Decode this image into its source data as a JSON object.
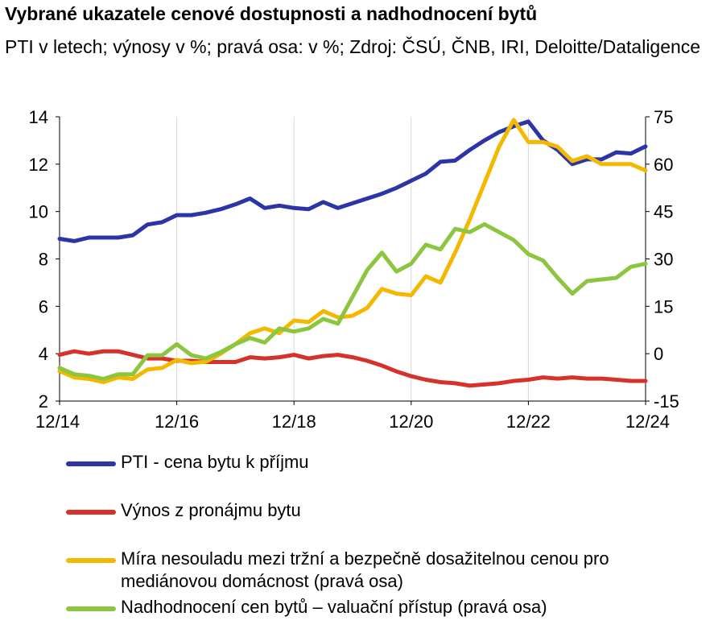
{
  "title": "Vybrané ukazatele cenové dostupnosti a nadhodnocení bytů",
  "subtitle": "PTI v letech; výnosy v %; pravá osa: v %; Zdroj: ČSÚ, ČNB, IRI, Deloitte/Dataligence",
  "chart_data": {
    "type": "line",
    "x_ticks": [
      "12/14",
      "12/16",
      "12/18",
      "12/20",
      "12/22",
      "12/24"
    ],
    "x_range": [
      2014.917,
      2024.917
    ],
    "ylim_left": [
      2,
      14
    ],
    "yticks_left": [
      2,
      4,
      6,
      8,
      10,
      12,
      14
    ],
    "ylim_right": [
      -15,
      75
    ],
    "yticks_right": [
      -15,
      0,
      15,
      30,
      45,
      60,
      75
    ],
    "grid": "vertical",
    "legend_position": "bottom",
    "series": [
      {
        "name": "PTI - cena bytu k příjmu",
        "axis": "left",
        "color": "#2b35a8",
        "x": [
          2014.917,
          2015.167,
          2015.417,
          2015.667,
          2015.917,
          2016.167,
          2016.417,
          2016.667,
          2016.917,
          2017.167,
          2017.417,
          2017.667,
          2017.917,
          2018.167,
          2018.417,
          2018.667,
          2018.917,
          2019.167,
          2019.417,
          2019.667,
          2019.917,
          2020.167,
          2020.417,
          2020.667,
          2020.917,
          2021.167,
          2021.417,
          2021.667,
          2021.917,
          2022.167,
          2022.417,
          2022.667,
          2022.917,
          2023.167,
          2023.417,
          2023.667,
          2023.917,
          2024.167,
          2024.417,
          2024.667,
          2024.917
        ],
        "y": [
          8.85,
          8.75,
          8.9,
          8.9,
          8.9,
          9.0,
          9.45,
          9.55,
          9.85,
          9.85,
          9.95,
          10.1,
          10.3,
          10.55,
          10.15,
          10.25,
          10.15,
          10.1,
          10.4,
          10.15,
          10.35,
          10.55,
          10.75,
          11.0,
          11.3,
          11.6,
          12.1,
          12.15,
          12.6,
          13.0,
          13.35,
          13.6,
          13.8,
          13.0,
          12.6,
          12.0,
          12.2,
          12.2,
          12.5,
          12.45,
          12.75
        ]
      },
      {
        "name": "Výnos z pronájmu bytu",
        "axis": "left",
        "color": "#d6322a",
        "x": [
          2014.917,
          2015.167,
          2015.417,
          2015.667,
          2015.917,
          2016.167,
          2016.417,
          2016.667,
          2016.917,
          2017.167,
          2017.417,
          2017.667,
          2017.917,
          2018.167,
          2018.417,
          2018.667,
          2018.917,
          2019.167,
          2019.417,
          2019.667,
          2019.917,
          2020.167,
          2020.417,
          2020.667,
          2020.917,
          2021.167,
          2021.417,
          2021.667,
          2021.917,
          2022.167,
          2022.417,
          2022.667,
          2022.917,
          2023.167,
          2023.417,
          2023.667,
          2023.917,
          2024.167,
          2024.417,
          2024.667,
          2024.917
        ],
        "y": [
          3.95,
          4.1,
          4.0,
          4.1,
          4.1,
          3.95,
          3.8,
          3.8,
          3.7,
          3.7,
          3.65,
          3.65,
          3.65,
          3.85,
          3.8,
          3.85,
          3.95,
          3.8,
          3.9,
          3.95,
          3.85,
          3.7,
          3.5,
          3.25,
          3.05,
          2.9,
          2.8,
          2.75,
          2.65,
          2.7,
          2.75,
          2.85,
          2.9,
          3.0,
          2.95,
          3.0,
          2.95,
          2.95,
          2.9,
          2.85,
          2.85
        ]
      },
      {
        "name": "Míra nesouladu mezi tržní a bezpečně dosažitelnou cenou pro mediánovou domácnost (pravá osa)",
        "axis": "right",
        "color": "#f5b800",
        "x": [
          2014.917,
          2015.167,
          2015.417,
          2015.667,
          2015.917,
          2016.167,
          2016.417,
          2016.667,
          2016.917,
          2017.167,
          2017.417,
          2017.667,
          2017.917,
          2018.167,
          2018.417,
          2018.667,
          2018.917,
          2019.167,
          2019.417,
          2019.667,
          2019.917,
          2020.167,
          2020.417,
          2020.667,
          2020.917,
          2021.167,
          2021.417,
          2021.667,
          2021.917,
          2022.167,
          2022.417,
          2022.667,
          2022.917,
          2023.167,
          2023.417,
          2023.667,
          2023.917,
          2024.167,
          2024.417,
          2024.667,
          2024.917
        ],
        "y": [
          -5.5,
          -7.5,
          -8.0,
          -9.0,
          -7.5,
          -8.0,
          -5.0,
          -4.5,
          -2.0,
          -3.0,
          -2.5,
          0,
          3.0,
          6.5,
          8.0,
          6.5,
          10.5,
          10.0,
          13.5,
          11.5,
          12.0,
          14.5,
          20.5,
          19.0,
          18.5,
          24.5,
          22.5,
          32.0,
          42.5,
          54.0,
          65.5,
          74.0,
          67.0,
          67.0,
          65.5,
          61.0,
          62.5,
          60.0,
          60.0,
          60.0,
          58.0
        ]
      },
      {
        "name": "Nadhodnocení cen bytů – valuační přístup (pravá osa)",
        "axis": "right",
        "color": "#8cc63f",
        "x": [
          2014.917,
          2015.167,
          2015.417,
          2015.667,
          2015.917,
          2016.167,
          2016.417,
          2016.667,
          2016.917,
          2017.167,
          2017.417,
          2017.667,
          2017.917,
          2018.167,
          2018.417,
          2018.667,
          2018.917,
          2019.167,
          2019.417,
          2019.667,
          2019.917,
          2020.167,
          2020.417,
          2020.667,
          2020.917,
          2021.167,
          2021.417,
          2021.667,
          2021.917,
          2022.167,
          2022.417,
          2022.667,
          2022.917,
          2023.167,
          2023.417,
          2023.667,
          2023.917,
          2024.167,
          2024.417,
          2024.667,
          2024.917
        ],
        "y": [
          -4.5,
          -6.5,
          -7.0,
          -8.0,
          -6.5,
          -6.5,
          -0.5,
          -0.5,
          3.0,
          -0.5,
          -1.5,
          0.5,
          3.0,
          5.0,
          3.5,
          8.0,
          7.0,
          8.0,
          11.0,
          9.5,
          18.0,
          26.5,
          32.0,
          26.0,
          28.5,
          34.5,
          33.0,
          39.5,
          38.5,
          41.0,
          38.5,
          36.0,
          31.5,
          29.5,
          24.0,
          19.0,
          23.0,
          23.5,
          24.0,
          27.5,
          28.5
        ]
      }
    ]
  }
}
